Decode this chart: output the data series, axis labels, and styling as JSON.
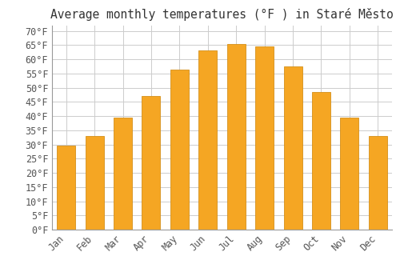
{
  "title": "Average monthly temperatures (°F ) in Staré Město",
  "months": [
    "Jan",
    "Feb",
    "Mar",
    "Apr",
    "May",
    "Jun",
    "Jul",
    "Aug",
    "Sep",
    "Oct",
    "Nov",
    "Dec"
  ],
  "values": [
    29.5,
    33,
    39.5,
    47,
    56.5,
    63,
    65.5,
    64.5,
    57.5,
    48.5,
    39.5,
    33
  ],
  "bar_color": "#F5A623",
  "bar_edge_color": "#D4901A",
  "background_color": "#ffffff",
  "ylim": [
    0,
    72
  ],
  "yticks": [
    0,
    5,
    10,
    15,
    20,
    25,
    30,
    35,
    40,
    45,
    50,
    55,
    60,
    65,
    70
  ],
  "grid_color": "#cccccc",
  "title_fontsize": 10.5,
  "tick_fontsize": 8.5,
  "bar_width": 0.65
}
